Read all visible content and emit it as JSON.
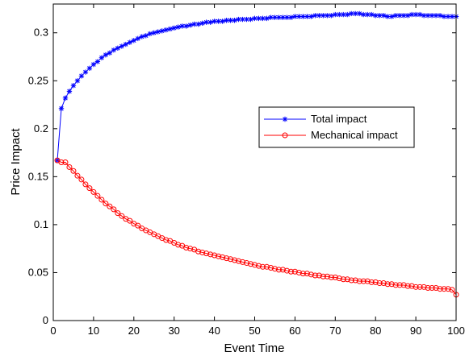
{
  "chart_data": {
    "type": "line",
    "xlabel": "Event Time",
    "ylabel": "Price Impact",
    "xlim": [
      0,
      100
    ],
    "ylim": [
      0,
      0.33
    ],
    "xticks": [
      0,
      10,
      20,
      30,
      40,
      50,
      60,
      70,
      80,
      90,
      100
    ],
    "yticks": [
      0,
      0.05,
      0.1,
      0.15,
      0.2,
      0.25,
      0.3
    ],
    "xtick_labels": [
      "0",
      "10",
      "20",
      "30",
      "40",
      "50",
      "60",
      "70",
      "80",
      "90",
      "100"
    ],
    "ytick_labels": [
      "0",
      "0.05",
      "0.1",
      "0.15",
      "0.2",
      "0.25",
      "0.3"
    ],
    "grid": false,
    "legend_position": "center-right",
    "series": [
      {
        "name": "Total impact",
        "color": "#0000ff",
        "marker": "star",
        "x": [
          1,
          2,
          3,
          4,
          5,
          6,
          7,
          8,
          9,
          10,
          11,
          12,
          13,
          14,
          15,
          16,
          17,
          18,
          19,
          20,
          21,
          22,
          23,
          24,
          25,
          26,
          27,
          28,
          29,
          30,
          31,
          32,
          33,
          34,
          35,
          36,
          37,
          38,
          39,
          40,
          41,
          42,
          43,
          44,
          45,
          46,
          47,
          48,
          49,
          50,
          51,
          52,
          53,
          54,
          55,
          56,
          57,
          58,
          59,
          60,
          61,
          62,
          63,
          64,
          65,
          66,
          67,
          68,
          69,
          70,
          71,
          72,
          73,
          74,
          75,
          76,
          77,
          78,
          79,
          80,
          81,
          82,
          83,
          84,
          85,
          86,
          87,
          88,
          89,
          90,
          91,
          92,
          93,
          94,
          95,
          96,
          97,
          98,
          99,
          100
        ],
        "y": [
          0.167,
          0.221,
          0.232,
          0.239,
          0.245,
          0.25,
          0.255,
          0.259,
          0.263,
          0.267,
          0.27,
          0.274,
          0.277,
          0.279,
          0.282,
          0.284,
          0.286,
          0.288,
          0.29,
          0.292,
          0.294,
          0.296,
          0.297,
          0.299,
          0.3,
          0.301,
          0.302,
          0.303,
          0.304,
          0.305,
          0.306,
          0.307,
          0.307,
          0.308,
          0.309,
          0.309,
          0.31,
          0.311,
          0.311,
          0.312,
          0.312,
          0.312,
          0.313,
          0.313,
          0.313,
          0.314,
          0.314,
          0.314,
          0.314,
          0.315,
          0.315,
          0.315,
          0.315,
          0.316,
          0.316,
          0.316,
          0.316,
          0.316,
          0.316,
          0.317,
          0.317,
          0.317,
          0.317,
          0.317,
          0.318,
          0.318,
          0.318,
          0.318,
          0.318,
          0.319,
          0.319,
          0.319,
          0.319,
          0.32,
          0.32,
          0.32,
          0.319,
          0.319,
          0.319,
          0.318,
          0.318,
          0.318,
          0.317,
          0.317,
          0.318,
          0.318,
          0.318,
          0.318,
          0.319,
          0.319,
          0.319,
          0.318,
          0.318,
          0.318,
          0.318,
          0.318,
          0.317,
          0.317,
          0.317,
          0.317
        ]
      },
      {
        "name": "Mechanical impact",
        "color": "#ff0000",
        "marker": "circle",
        "x": [
          1,
          2,
          3,
          4,
          5,
          6,
          7,
          8,
          9,
          10,
          11,
          12,
          13,
          14,
          15,
          16,
          17,
          18,
          19,
          20,
          21,
          22,
          23,
          24,
          25,
          26,
          27,
          28,
          29,
          30,
          31,
          32,
          33,
          34,
          35,
          36,
          37,
          38,
          39,
          40,
          41,
          42,
          43,
          44,
          45,
          46,
          47,
          48,
          49,
          50,
          51,
          52,
          53,
          54,
          55,
          56,
          57,
          58,
          59,
          60,
          61,
          62,
          63,
          64,
          65,
          66,
          67,
          68,
          69,
          70,
          71,
          72,
          73,
          74,
          75,
          76,
          77,
          78,
          79,
          80,
          81,
          82,
          83,
          84,
          85,
          86,
          87,
          88,
          89,
          90,
          91,
          92,
          93,
          94,
          95,
          96,
          97,
          98,
          99,
          100
        ],
        "y": [
          0.167,
          0.165,
          0.165,
          0.16,
          0.156,
          0.151,
          0.147,
          0.142,
          0.138,
          0.134,
          0.13,
          0.126,
          0.122,
          0.119,
          0.116,
          0.112,
          0.109,
          0.106,
          0.104,
          0.101,
          0.099,
          0.096,
          0.094,
          0.092,
          0.09,
          0.088,
          0.086,
          0.084,
          0.083,
          0.081,
          0.079,
          0.078,
          0.076,
          0.075,
          0.074,
          0.072,
          0.071,
          0.07,
          0.069,
          0.068,
          0.067,
          0.066,
          0.065,
          0.064,
          0.063,
          0.062,
          0.061,
          0.06,
          0.059,
          0.058,
          0.057,
          0.056,
          0.056,
          0.055,
          0.054,
          0.053,
          0.053,
          0.052,
          0.051,
          0.051,
          0.05,
          0.049,
          0.049,
          0.048,
          0.047,
          0.047,
          0.046,
          0.046,
          0.045,
          0.045,
          0.044,
          0.043,
          0.043,
          0.042,
          0.042,
          0.041,
          0.041,
          0.041,
          0.04,
          0.04,
          0.039,
          0.039,
          0.038,
          0.038,
          0.037,
          0.037,
          0.037,
          0.036,
          0.036,
          0.035,
          0.035,
          0.035,
          0.034,
          0.034,
          0.034,
          0.033,
          0.033,
          0.033,
          0.032,
          0.027
        ]
      }
    ]
  }
}
